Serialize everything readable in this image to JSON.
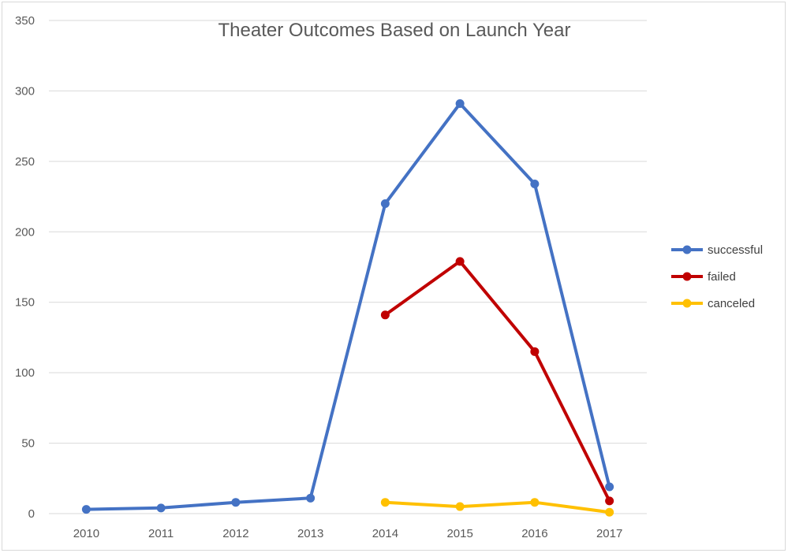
{
  "chart_data": {
    "type": "line",
    "title": "Theater Outcomes Based on Launch Year",
    "xlabel": "",
    "ylabel": "",
    "categories": [
      "2010",
      "2011",
      "2012",
      "2013",
      "2014",
      "2015",
      "2016",
      "2017"
    ],
    "ylim": [
      0,
      350
    ],
    "yticks": [
      0,
      50,
      100,
      150,
      200,
      250,
      300,
      350
    ],
    "grid": true,
    "legend_position": "right",
    "series": [
      {
        "name": "successful",
        "color": "#4472c4",
        "values": [
          3,
          4,
          8,
          11,
          220,
          291,
          234,
          19
        ]
      },
      {
        "name": "failed",
        "color": "#c00000",
        "values": [
          null,
          null,
          null,
          null,
          141,
          179,
          115,
          9
        ]
      },
      {
        "name": "canceled",
        "color": "#ffc000",
        "values": [
          null,
          null,
          null,
          null,
          8,
          5,
          8,
          1
        ]
      }
    ]
  }
}
